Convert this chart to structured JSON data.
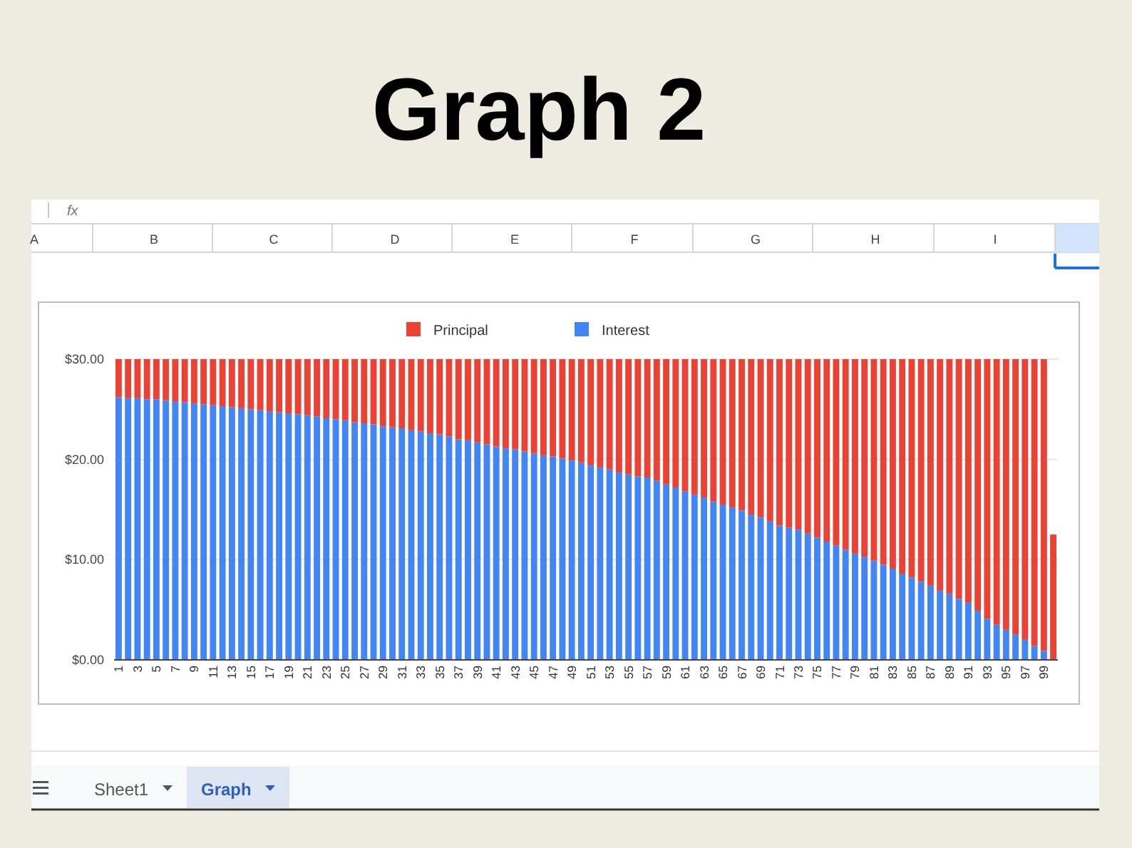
{
  "chart_data": {
    "type": "bar",
    "title": "Graph 2",
    "stacked": true,
    "legend": "top",
    "grid": "y",
    "categories": [
      "1",
      null,
      "3",
      null,
      "5",
      null,
      "7",
      null,
      "9",
      null,
      "11",
      null,
      "13",
      null,
      "15",
      null,
      "17",
      null,
      "19",
      null,
      "21",
      null,
      "23",
      null,
      "25",
      null,
      "27",
      null,
      "29",
      null,
      "31",
      null,
      "33",
      null,
      "35",
      null,
      "37",
      null,
      "39",
      null,
      "41",
      null,
      "43",
      null,
      "45",
      null,
      "47",
      null,
      "49",
      null,
      "51",
      null,
      "53",
      null,
      "55",
      null,
      "57",
      null,
      "59",
      null,
      "61",
      null,
      "63",
      null,
      "65",
      null,
      "67",
      null,
      "69",
      null,
      "71",
      null,
      "73",
      null,
      "75",
      null,
      "77",
      null,
      "79",
      null,
      "81",
      null,
      "83",
      null,
      "85",
      null,
      "87",
      null,
      "89",
      null,
      "91",
      null,
      "93",
      null,
      "95",
      null,
      "97",
      null,
      "99",
      null
    ],
    "series": [
      {
        "name": "Interest",
        "color": "#4285f4",
        "values": [
          26.2,
          26.1,
          26.1,
          26.0,
          26.0,
          25.9,
          25.8,
          25.7,
          25.6,
          25.5,
          25.4,
          25.3,
          25.2,
          25.1,
          25.0,
          24.9,
          24.8,
          24.7,
          24.6,
          24.5,
          24.4,
          24.3,
          24.1,
          24.0,
          23.9,
          23.7,
          23.6,
          23.5,
          23.3,
          23.2,
          23.1,
          22.9,
          22.8,
          22.6,
          22.5,
          22.3,
          22.0,
          21.9,
          21.7,
          21.5,
          21.3,
          21.1,
          21.0,
          20.8,
          20.6,
          20.4,
          20.3,
          20.1,
          19.9,
          19.7,
          19.4,
          19.2,
          19.0,
          18.7,
          18.5,
          18.3,
          18.2,
          17.9,
          17.5,
          17.2,
          16.8,
          16.5,
          16.2,
          15.8,
          15.5,
          15.2,
          14.9,
          14.5,
          14.2,
          13.8,
          13.4,
          13.2,
          13.0,
          12.6,
          12.2,
          11.8,
          11.4,
          11.0,
          10.6,
          10.3,
          9.9,
          9.5,
          9.1,
          8.6,
          8.2,
          7.8,
          7.4,
          6.9,
          6.6,
          6.1,
          5.7,
          4.9,
          4.1,
          3.5,
          3.0,
          2.5,
          2.0,
          1.4,
          0.9,
          null
        ]
      },
      {
        "name": "Principal",
        "color": "#ea4335",
        "values": [
          3.8,
          3.9,
          3.9,
          4.0,
          4.0,
          4.1,
          4.2,
          4.3,
          4.4,
          4.5,
          4.6,
          4.7,
          4.8,
          4.9,
          5.0,
          5.1,
          5.2,
          5.3,
          5.4,
          5.5,
          5.6,
          5.7,
          5.9,
          6.0,
          6.1,
          6.3,
          6.4,
          6.5,
          6.7,
          6.8,
          6.9,
          7.1,
          7.2,
          7.4,
          7.5,
          7.7,
          8.0,
          8.1,
          8.3,
          8.5,
          8.7,
          8.9,
          9.0,
          9.2,
          9.4,
          9.6,
          9.7,
          9.9,
          10.1,
          10.3,
          10.6,
          10.8,
          11.0,
          11.3,
          11.5,
          11.7,
          11.8,
          12.1,
          12.5,
          12.8,
          13.2,
          13.5,
          13.8,
          14.2,
          14.5,
          14.8,
          15.1,
          15.5,
          15.8,
          16.2,
          16.6,
          16.8,
          17.0,
          17.4,
          17.8,
          18.2,
          18.6,
          19.0,
          19.4,
          19.7,
          20.1,
          20.5,
          20.9,
          21.4,
          21.8,
          22.2,
          22.6,
          23.1,
          23.4,
          23.9,
          24.3,
          25.1,
          25.9,
          26.5,
          27.0,
          27.5,
          28.0,
          28.6,
          29.1,
          12.5
        ]
      }
    ],
    "ylim": [
      0,
      30
    ],
    "yticks": [
      {
        "value": 0,
        "label": "$0.00"
      },
      {
        "value": 10,
        "label": "$10.00"
      },
      {
        "value": 20,
        "label": "$20.00"
      },
      {
        "value": 30,
        "label": "$30.00"
      }
    ],
    "annotations": [
      "A",
      "B",
      "C",
      "D",
      "E",
      "F",
      "G",
      "H",
      "I",
      "fx",
      "Sheet1",
      "Graph"
    ]
  }
}
